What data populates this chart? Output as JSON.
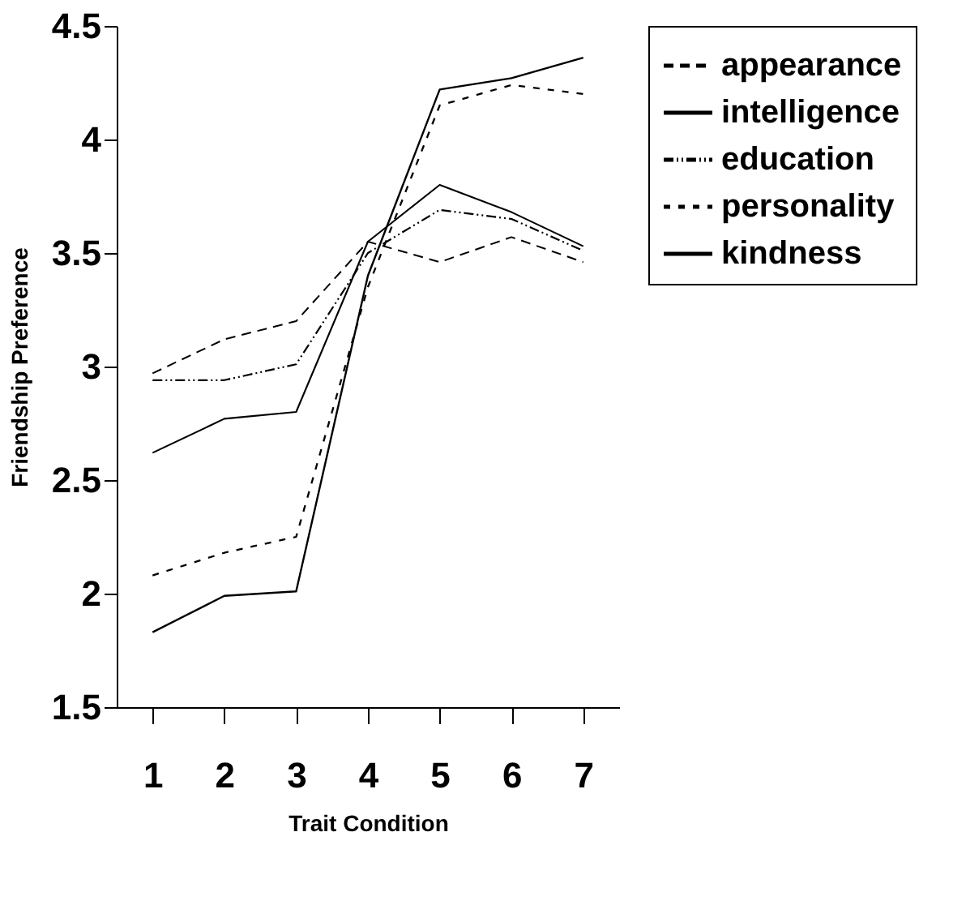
{
  "chart_data": {
    "type": "line",
    "xlabel": "Trait Condition",
    "ylabel": "Friendship Preference",
    "categories": [
      "1",
      "2",
      "3",
      "4",
      "5",
      "6",
      "7"
    ],
    "ylim": [
      1.5,
      4.5
    ],
    "yticks": [
      1.5,
      2,
      2.5,
      3,
      3.5,
      4,
      4.5
    ],
    "grid": false,
    "legend": "right",
    "marker": "none",
    "series": [
      {
        "name": "appearance",
        "color": "#000000",
        "line_style": "dashed",
        "values": [
          2.97,
          3.12,
          3.2,
          3.55,
          3.46,
          3.57,
          3.46
        ]
      },
      {
        "name": "intelligence",
        "color": "#000000",
        "line_style": "solid",
        "values": [
          2.62,
          2.77,
          2.8,
          3.55,
          3.8,
          3.68,
          3.53
        ]
      },
      {
        "name": "education",
        "color": "#000000",
        "line_style": "dashdot",
        "values": [
          2.94,
          2.94,
          3.01,
          3.5,
          3.69,
          3.65,
          3.51
        ]
      },
      {
        "name": "personality",
        "color": "#000000",
        "line_style": "dotted",
        "values": [
          2.08,
          2.18,
          2.25,
          3.35,
          4.15,
          4.24,
          4.2
        ]
      },
      {
        "name": "kindness",
        "color": "#000000",
        "line_style": "solid",
        "values": [
          1.83,
          1.99,
          2.01,
          3.4,
          4.22,
          4.27,
          4.36
        ]
      }
    ]
  }
}
